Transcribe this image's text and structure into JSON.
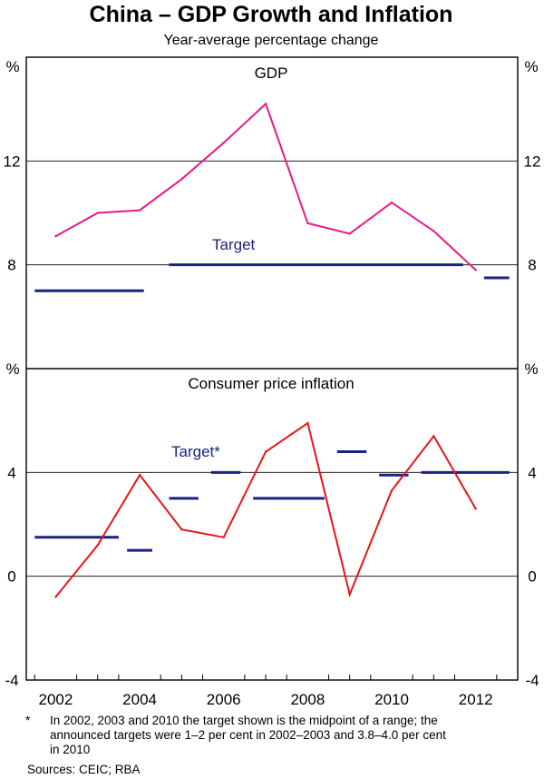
{
  "chart_data": {
    "title": "China – GDP Growth and Inflation",
    "subtitle": "Year-average percentage change",
    "x_ticks": [
      "2002",
      "2004",
      "2006",
      "2008",
      "2010",
      "2012"
    ],
    "xlim": [
      2001.3,
      2013.0
    ],
    "panels": [
      {
        "id": "gdp",
        "type": "line",
        "title": "GDP",
        "unit_label": "%",
        "ylim": [
          4,
          16
        ],
        "y_ticks": [
          "8",
          "12"
        ],
        "grid": true,
        "series": [
          {
            "color": "#e6198a",
            "x": [
              2002,
              2003,
              2004,
              2005,
              2006,
              2007,
              2008,
              2009,
              2010,
              2011,
              2012
            ],
            "y": [
              9.1,
              10.0,
              10.1,
              11.3,
              12.7,
              14.2,
              9.6,
              9.2,
              10.4,
              9.3,
              7.8
            ]
          }
        ],
        "targets": {
          "label": "Target",
          "color": "#1a237e",
          "segments": [
            {
              "x0": 2001.5,
              "x1": 2004.1,
              "y": 7.0
            },
            {
              "x0": 2004.7,
              "x1": 2011.7,
              "y": 8.0
            },
            {
              "x0": 2012.2,
              "x1": 2012.8,
              "y": 7.5
            }
          ]
        }
      },
      {
        "id": "cpi",
        "type": "line",
        "title": "Consumer price inflation",
        "unit_label": "%",
        "ylim": [
          -4,
          8
        ],
        "y_ticks": [
          "-4",
          "0",
          "4"
        ],
        "grid": true,
        "series": [
          {
            "color": "#e8151b",
            "x": [
              2002,
              2003,
              2004,
              2005,
              2006,
              2007,
              2008,
              2009,
              2010,
              2011,
              2012
            ],
            "y": [
              -0.8,
              1.2,
              3.9,
              1.8,
              1.5,
              4.8,
              5.9,
              -0.7,
              3.3,
              5.4,
              2.6
            ]
          }
        ],
        "targets": {
          "label": "Target*",
          "color": "#1a237e",
          "segments": [
            {
              "x0": 2001.5,
              "x1": 2003.5,
              "y": 1.5
            },
            {
              "x0": 2003.7,
              "x1": 2004.3,
              "y": 1.0
            },
            {
              "x0": 2004.7,
              "x1": 2005.4,
              "y": 3.0
            },
            {
              "x0": 2005.7,
              "x1": 2006.4,
              "y": 4.0
            },
            {
              "x0": 2006.7,
              "x1": 2008.4,
              "y": 3.0
            },
            {
              "x0": 2008.7,
              "x1": 2009.4,
              "y": 4.8
            },
            {
              "x0": 2009.7,
              "x1": 2010.4,
              "y": 3.9
            },
            {
              "x0": 2010.7,
              "x1": 2012.8,
              "y": 4.0
            }
          ]
        }
      }
    ],
    "footnote_marker": "*",
    "footnote": "In 2002, 2003 and 2010 the target shown is the midpoint of a range; the announced targets were 1–2 per cent in 2002–2003 and 3.8–4.0 per cent in 2010",
    "sources": "Sources: CEIC; RBA"
  }
}
